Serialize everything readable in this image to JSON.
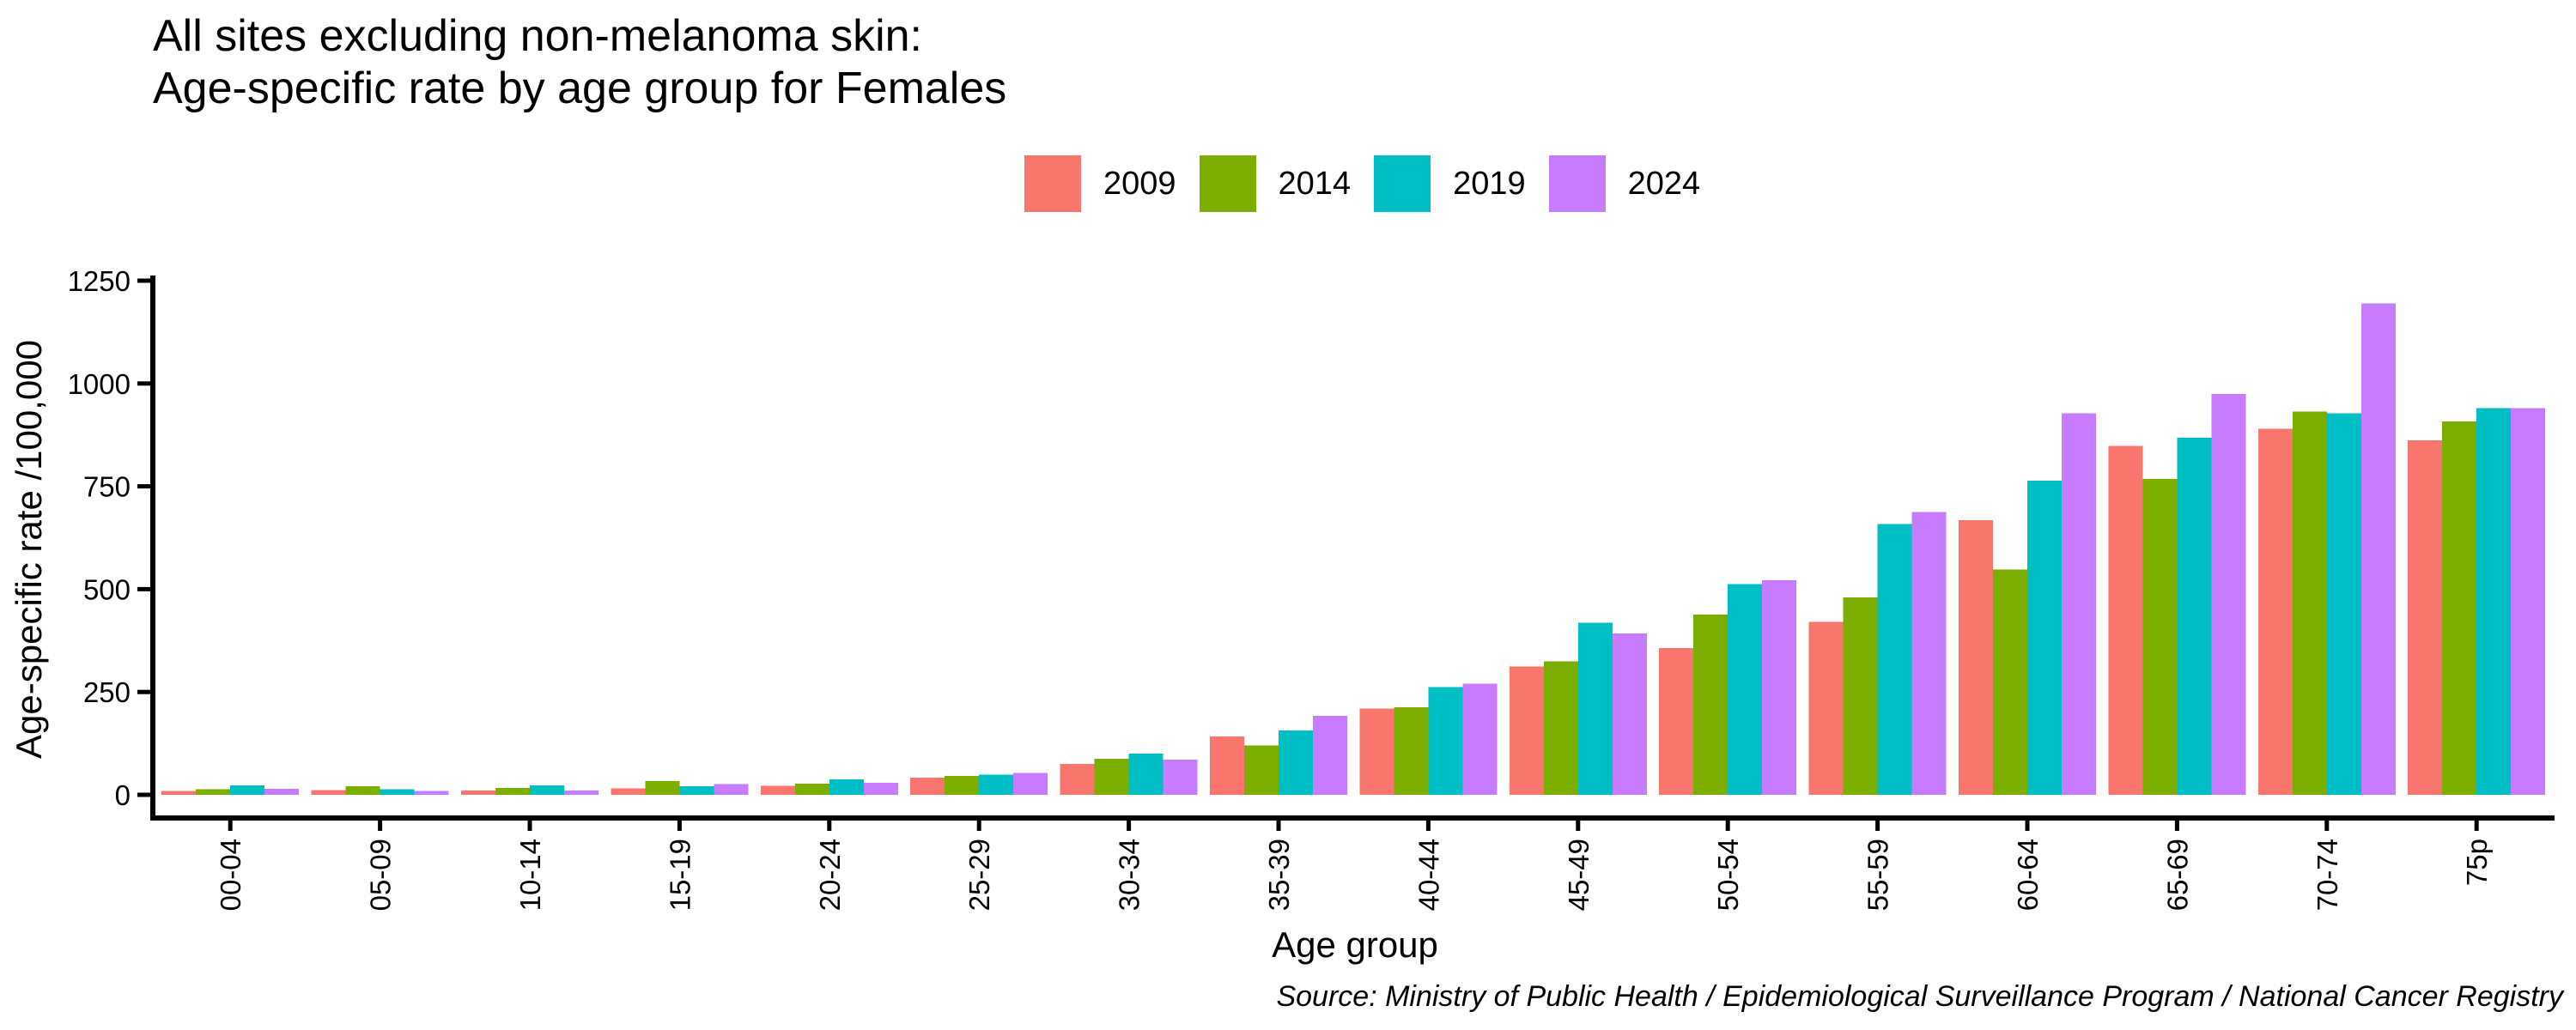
{
  "title": {
    "line1": "All sites excluding non-melanoma skin:",
    "line2": "Age-specific rate by age group for Females"
  },
  "legend": {
    "items": [
      {
        "label": "2009",
        "color": "#F8766D"
      },
      {
        "label": "2014",
        "color": "#7CAE00"
      },
      {
        "label": "2019",
        "color": "#00BFC4"
      },
      {
        "label": "2024",
        "color": "#C77CFF"
      }
    ]
  },
  "source": "Source: Ministry of Public Health / Epidemiological Surveillance Program / National Cancer Registry",
  "colors": {
    "series_2009": "#F8766D",
    "series_2014": "#7CAE00",
    "series_2019": "#00BFC4",
    "series_2024": "#C77CFF",
    "axis": "#000000",
    "background": "#ffffff"
  },
  "chart_data": {
    "type": "bar",
    "title": "All sites excluding non-melanoma skin: Age-specific rate by age group for Females",
    "xlabel": "Age group",
    "ylabel": "Age-specific rate /100,000",
    "ylim": [
      0,
      1250
    ],
    "y_ticks": [
      0,
      250,
      500,
      750,
      1000,
      1250
    ],
    "grid": false,
    "legend_position": "top-center",
    "bar_layout": "grouped-dodge",
    "x_label_rotation": -90,
    "categories": [
      "00-04",
      "05-09",
      "10-14",
      "15-19",
      "20-24",
      "25-29",
      "30-34",
      "35-39",
      "40-44",
      "45-49",
      "50-54",
      "55-59",
      "60-64",
      "65-69",
      "70-74",
      "75p"
    ],
    "series": [
      {
        "name": "2009",
        "color": "#F8766D",
        "values": [
          9,
          11,
          10,
          16,
          22,
          42,
          75,
          142,
          210,
          312,
          357,
          420,
          668,
          848,
          890,
          862
        ]
      },
      {
        "name": "2014",
        "color": "#7CAE00",
        "values": [
          14,
          21,
          17,
          33,
          27,
          46,
          88,
          120,
          213,
          325,
          438,
          480,
          548,
          768,
          932,
          908
        ]
      },
      {
        "name": "2019",
        "color": "#00BFC4",
        "values": [
          23,
          14,
          23,
          21,
          38,
          49,
          100,
          156,
          262,
          418,
          512,
          658,
          764,
          868,
          928,
          940
        ]
      },
      {
        "name": "2024",
        "color": "#C77CFF",
        "values": [
          15,
          9,
          10,
          26,
          29,
          53,
          86,
          192,
          270,
          392,
          522,
          688,
          928,
          975,
          1195,
          940
        ]
      }
    ]
  }
}
